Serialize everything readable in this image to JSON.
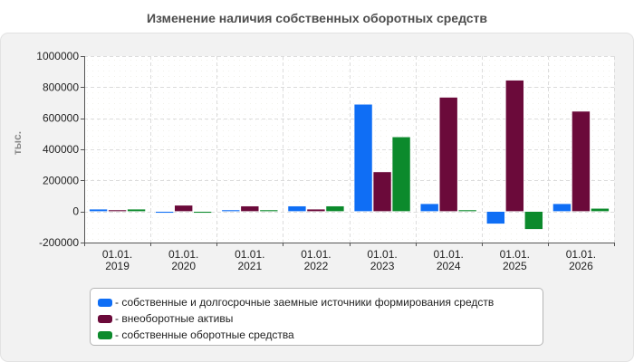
{
  "chart_data": {
    "type": "bar",
    "title": "Изменение наличия собственных оборотных средств",
    "ylabel": "тыс.",
    "xlabel": "",
    "ylim": [
      -200000,
      1000000
    ],
    "yticks": [
      -200000,
      0,
      200000,
      400000,
      600000,
      800000,
      1000000
    ],
    "grid": true,
    "legend_position": "bottom",
    "categories": [
      [
        "01.01.",
        "2019"
      ],
      [
        "01.01.",
        "2020"
      ],
      [
        "01.01.",
        "2021"
      ],
      [
        "01.01.",
        "2022"
      ],
      [
        "01.01.",
        "2023"
      ],
      [
        "01.01.",
        "2024"
      ],
      [
        "01.01.",
        "2025"
      ],
      [
        "01.01.",
        "2026"
      ]
    ],
    "series": [
      {
        "name": "- собственные и долгосрочные заемные источники формирования средств",
        "color": "#0f6ef5",
        "values": [
          15000,
          -10000,
          10000,
          35000,
          690000,
          50000,
          -80000,
          50000
        ]
      },
      {
        "name": "- внеоборотные активы",
        "color": "#6b0a3a",
        "values": [
          10000,
          40000,
          35000,
          15000,
          255000,
          735000,
          845000,
          645000
        ]
      },
      {
        "name": "- собственные оборотные средства",
        "color": "#0c8a2c",
        "values": [
          15000,
          -10000,
          10000,
          35000,
          480000,
          10000,
          -115000,
          20000
        ]
      }
    ]
  }
}
